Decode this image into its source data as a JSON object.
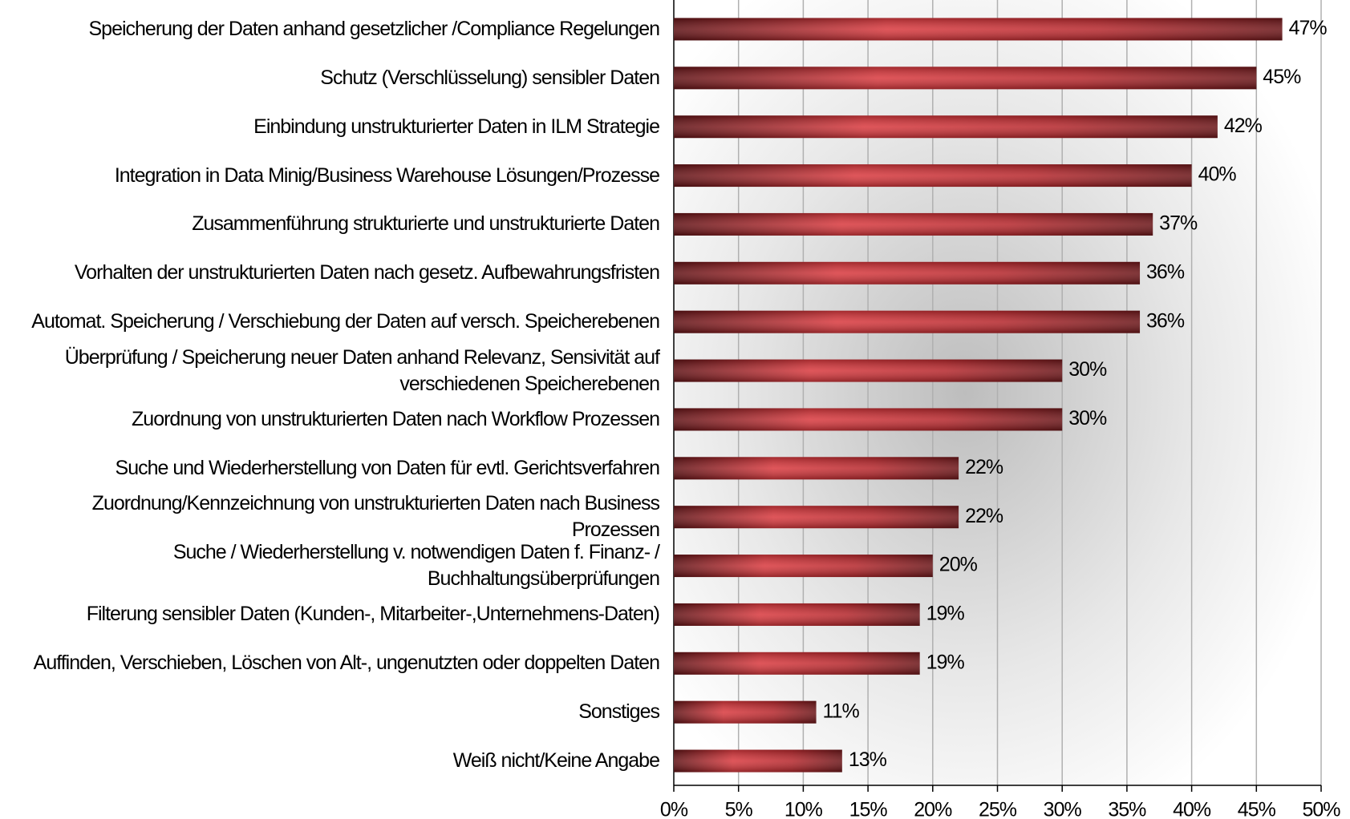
{
  "chart_data": {
    "type": "bar",
    "orientation": "horizontal",
    "categories": [
      "Speicherung der Daten anhand gesetzlicher /Compliance Regelungen",
      "Schutz (Verschlüsselung) sensibler Daten",
      "Einbindung unstrukturierter Daten in ILM Strategie",
      "Integration in Data Minig/Business Warehouse Lösungen/Prozesse",
      "Zusammenführung strukturierte und unstrukturierte Daten",
      "Vorhalten der unstrukturierten Daten nach gesetz. Aufbewahrungsfristen",
      "Automat. Speicherung / Verschiebung der Daten auf versch. Speicherebenen",
      "Überprüfung / Speicherung neuer Daten anhand Relevanz, Sensivität auf verschiedenen Speicherebenen",
      "Zuordnung von unstrukturierten Daten nach Workflow Prozessen",
      "Suche und Wiederherstellung von Daten für evtl. Gerichtsverfahren",
      "Zuordnung/Kennzeichnung von unstrukturierten Daten nach Business Prozessen",
      "Suche / Wiederherstellung v. notwendigen Daten f. Finanz- / Buchhaltungsüberprüfungen",
      "Filterung sensibler Daten (Kunden-, Mitarbeiter-,Unternehmens-Daten)",
      "Auffinden, Verschieben, Löschen von Alt-, ungenutzten oder doppelten Daten",
      "Sonstiges",
      "Weiß nicht/Keine Angabe"
    ],
    "values": [
      47,
      45,
      42,
      40,
      37,
      36,
      36,
      30,
      30,
      22,
      22,
      20,
      19,
      19,
      11,
      13
    ],
    "value_labels": [
      "47%",
      "45%",
      "42%",
      "40%",
      "37%",
      "36%",
      "36%",
      "30%",
      "30%",
      "22%",
      "22%",
      "20%",
      "19%",
      "19%",
      "11%",
      "13%"
    ],
    "color": "#c0282d",
    "xlim": [
      0,
      50
    ],
    "xticks": [
      {
        "value": 0,
        "label": "0%"
      },
      {
        "value": 5,
        "label": "5%"
      },
      {
        "value": 10,
        "label": "10%"
      },
      {
        "value": 15,
        "label": "15%"
      },
      {
        "value": 20,
        "label": "20%"
      },
      {
        "value": 25,
        "label": "25%"
      },
      {
        "value": 30,
        "label": "30%"
      },
      {
        "value": 35,
        "label": "35%"
      },
      {
        "value": 40,
        "label": "40%"
      },
      {
        "value": 45,
        "label": "45%"
      },
      {
        "value": 50,
        "label": "50%"
      }
    ],
    "grid": true
  }
}
